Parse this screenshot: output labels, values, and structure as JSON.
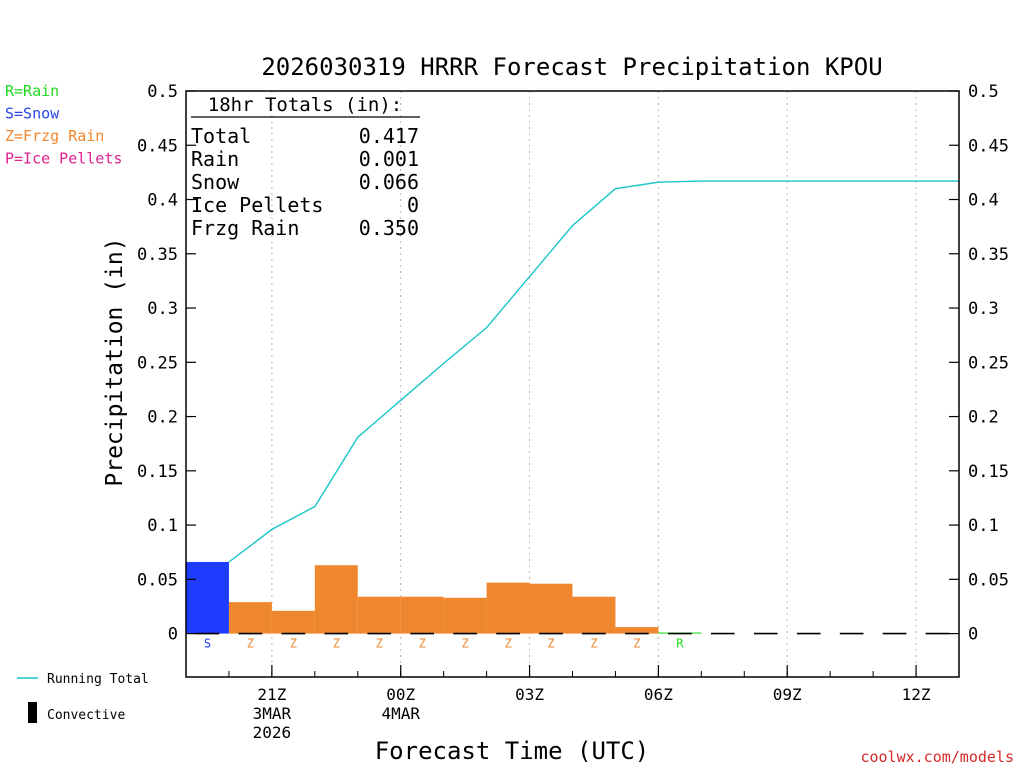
{
  "chart_data": {
    "type": "bar",
    "title": "2026030319 HRRR Forecast Precipitation KPOU",
    "xlabel": "Forecast Time (UTC)",
    "ylabel": "Precipitation (in)",
    "ylim": [
      -0.04,
      0.5
    ],
    "yticks": [
      "0.5",
      "0.45",
      "0.4",
      "0.35",
      "0.3",
      "0.25",
      "0.2",
      "0.15",
      "0.1",
      "0.05",
      "0"
    ],
    "ytick_values": [
      0.5,
      0.45,
      0.4,
      0.35,
      0.3,
      0.25,
      0.2,
      0.15,
      0.1,
      0.05,
      0
    ],
    "xlim_hours": [
      0,
      18
    ],
    "xticks": [
      {
        "hour": 2,
        "lines": [
          "21Z",
          "3MAR",
          "2026"
        ]
      },
      {
        "hour": 5,
        "lines": [
          "00Z",
          "4MAR"
        ]
      },
      {
        "hour": 8,
        "lines": [
          "03Z"
        ]
      },
      {
        "hour": 11,
        "lines": [
          "06Z"
        ]
      },
      {
        "hour": 14,
        "lines": [
          "09Z"
        ]
      },
      {
        "hour": 17,
        "lines": [
          "12Z"
        ]
      }
    ],
    "bars": [
      {
        "hour": 1,
        "value": 0.066,
        "type": "S"
      },
      {
        "hour": 2,
        "value": 0.029,
        "type": "Z"
      },
      {
        "hour": 3,
        "value": 0.021,
        "type": "Z"
      },
      {
        "hour": 4,
        "value": 0.063,
        "type": "Z"
      },
      {
        "hour": 5,
        "value": 0.034,
        "type": "Z"
      },
      {
        "hour": 6,
        "value": 0.034,
        "type": "Z"
      },
      {
        "hour": 7,
        "value": 0.033,
        "type": "Z"
      },
      {
        "hour": 8,
        "value": 0.047,
        "type": "Z"
      },
      {
        "hour": 9,
        "value": 0.046,
        "type": "Z"
      },
      {
        "hour": 10,
        "value": 0.034,
        "type": "Z"
      },
      {
        "hour": 11,
        "value": 0.006,
        "type": "Z"
      },
      {
        "hour": 12,
        "value": 0.001,
        "type": "R"
      }
    ],
    "running_total": {
      "name": "Running Total",
      "hours": [
        1,
        2,
        3,
        4,
        5,
        6,
        7,
        8,
        9,
        10,
        11,
        12,
        18
      ],
      "values": [
        0.066,
        0.096,
        0.117,
        0.181,
        0.215,
        0.249,
        0.282,
        0.329,
        0.376,
        0.41,
        0.416,
        0.417,
        0.417
      ]
    },
    "convective_hours": [
      1,
      2,
      3,
      4,
      5,
      6,
      7,
      8,
      9,
      10,
      11,
      12,
      13,
      14,
      15,
      16,
      17,
      18
    ],
    "totals_box": {
      "heading": "18hr Totals (in):",
      "rows": [
        {
          "label": "Total",
          "value": "0.417"
        },
        {
          "label": "Rain",
          "value": "0.001"
        },
        {
          "label": "Snow",
          "value": "0.066"
        },
        {
          "label": "Ice Pellets",
          "value": "0"
        },
        {
          "label": "Frzg Rain",
          "value": "0.350"
        }
      ]
    },
    "type_legend": [
      {
        "code": "R",
        "text": "R=Rain",
        "color": "#1ed91e"
      },
      {
        "code": "S",
        "text": "S=Snow",
        "color": "#2a45e6"
      },
      {
        "code": "Z",
        "text": "Z=Frzg Rain",
        "color": "#f0862d"
      },
      {
        "code": "P",
        "text": "P=Ice Pellets",
        "color": "#e0208c"
      }
    ],
    "bottom_legend": [
      {
        "key": "line",
        "text": "Running Total",
        "color": "#17c5c9"
      },
      {
        "key": "convective",
        "text": "Convective",
        "color": "#000000"
      }
    ],
    "credit": "coolwx.com/models",
    "colors": {
      "S": "#1e3cff",
      "Z": "#ef872e",
      "R": "#1ed91e",
      "P": "#e0208c",
      "line": "#17c5c9",
      "credit": "#d42a2a"
    }
  }
}
